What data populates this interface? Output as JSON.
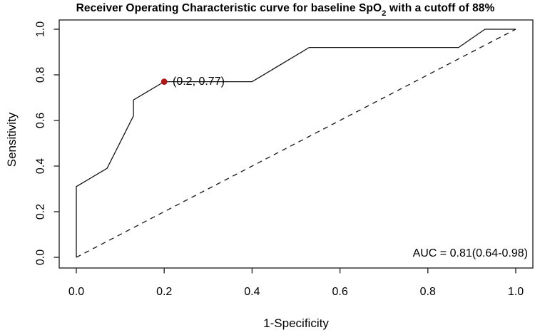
{
  "title": {
    "prefix": "Receiver Operating Characteristic curve for baseline SpO",
    "sub": "2",
    "suffix": " with a cutoff of 88%"
  },
  "axes": {
    "x_label": "1-Specificity",
    "y_label": "Sensitivity",
    "x_ticks": [
      "0.0",
      "0.2",
      "0.4",
      "0.6",
      "0.8",
      "1.0"
    ],
    "y_ticks": [
      "0.0",
      "0.2",
      "0.4",
      "0.6",
      "0.8",
      "1.0"
    ]
  },
  "annotations": {
    "point_label": "(0.2, 0.77)",
    "auc_label": "AUC = 0.81(0.64-0.98)"
  },
  "colors": {
    "curve": "#141414",
    "reference_line": "#141414",
    "box": "#2b2b2b",
    "tick": "#2b2b2b",
    "point": "#b01818",
    "text": "#000000"
  },
  "chart_data": {
    "type": "line",
    "title": "Receiver Operating Characteristic curve for baseline SpO2 with a cutoff of 88%",
    "xlabel": "1-Specificity",
    "ylabel": "Sensitivity",
    "xlim": [
      0,
      1
    ],
    "ylim": [
      0,
      1
    ],
    "grid": false,
    "x_tick_values": [
      0,
      0.2,
      0.4,
      0.6,
      0.8,
      1.0
    ],
    "y_tick_values": [
      0,
      0.2,
      0.4,
      0.6,
      0.8,
      1.0
    ],
    "series": [
      {
        "name": "ROC curve",
        "style": "solid",
        "points": [
          [
            0,
            0
          ],
          [
            0,
            0.31
          ],
          [
            0.07,
            0.39
          ],
          [
            0.13,
            0.62
          ],
          [
            0.13,
            0.69
          ],
          [
            0.2,
            0.77
          ],
          [
            0.4,
            0.77
          ],
          [
            0.53,
            0.92
          ],
          [
            0.87,
            0.92
          ],
          [
            0.93,
            1.0
          ],
          [
            1.0,
            1.0
          ]
        ]
      },
      {
        "name": "reference diagonal",
        "style": "dashed",
        "points": [
          [
            0,
            0
          ],
          [
            1,
            1
          ]
        ]
      }
    ],
    "marked_point": {
      "x": 0.2,
      "y": 0.77,
      "label": "(0.2, 0.77)"
    },
    "auc": {
      "value": 0.81,
      "ci_low": 0.64,
      "ci_high": 0.98,
      "text": "AUC = 0.81(0.64-0.98)"
    }
  }
}
